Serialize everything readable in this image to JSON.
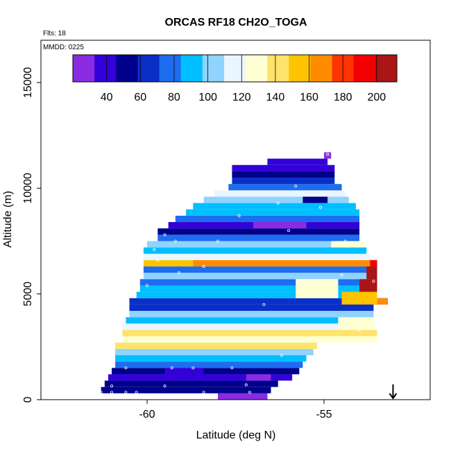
{
  "chart_data": {
    "type": "heatmap",
    "title": "ORCAS RF18 CH2O_TOGA",
    "annotations": {
      "flights": "Flts: 18",
      "date": "MMDD: 0225"
    },
    "xlabel": "Latitude (deg N)",
    "ylabel": "Altitude (m)",
    "xlim": [
      -63,
      -52
    ],
    "ylim": [
      0,
      17000
    ],
    "xticks": [
      -60,
      -55
    ],
    "yticks": [
      0,
      5000,
      10000,
      15000
    ],
    "colorbar": {
      "range": [
        20,
        212
      ],
      "ticks": [
        40,
        60,
        80,
        100,
        120,
        140,
        160,
        180,
        200
      ],
      "colors": [
        "#8a2be2",
        "#3300d9",
        "#00008b",
        "#0a2ec8",
        "#1e6cf0",
        "#00bfff",
        "#8fd3ff",
        "#eaf6ff",
        "#ffffd4",
        "#ffe36b",
        "#ffc400",
        "#ff8c00",
        "#ff3300",
        "#f00000",
        "#aa1515"
      ]
    },
    "arrow_marker": {
      "x": -53.05,
      "direction": "down"
    },
    "rows": [
      {
        "y0": 0,
        "y1": 300,
        "xmin": -58.0,
        "xmax": -56.6,
        "v": 32
      },
      {
        "y0": 300,
        "y1": 600,
        "xmin": -61.3,
        "xmax": -56.5,
        "v": 55
      },
      {
        "y0": 600,
        "y1": 900,
        "xmin": -61.2,
        "xmax": -56.3,
        "v": 48
      },
      {
        "y0": 900,
        "y1": 1200,
        "xmin": -61.1,
        "xmax": -55.9,
        "v": 40
      },
      {
        "y0": 1200,
        "y1": 1500,
        "xmin": -61.0,
        "xmax": -55.7,
        "v": 52
      },
      {
        "y0": 1500,
        "y1": 1800,
        "xmin": -60.9,
        "xmax": -55.6,
        "v": 72
      },
      {
        "y0": 1800,
        "y1": 2100,
        "xmin": -60.9,
        "xmax": -55.5,
        "v": 84
      },
      {
        "y0": 2100,
        "y1": 2400,
        "xmin": -60.9,
        "xmax": -55.3,
        "v": 108
      },
      {
        "y0": 2400,
        "y1": 2700,
        "xmin": -60.9,
        "xmax": -55.2,
        "v": 140
      },
      {
        "y0": 2700,
        "y1": 3000,
        "xmin": -60.7,
        "xmax": -53.5,
        "v": 130
      },
      {
        "y0": 3000,
        "y1": 3300,
        "xmin": -60.7,
        "xmax": -53.5,
        "v": 138
      },
      {
        "y0": 3300,
        "y1": 3600,
        "xmin": -60.7,
        "xmax": -53.6,
        "v": 112
      },
      {
        "y0": 3600,
        "y1": 3900,
        "xmin": -60.6,
        "xmax": -53.6,
        "v": 92
      },
      {
        "y0": 3900,
        "y1": 4200,
        "xmin": -60.5,
        "xmax": -53.6,
        "v": 106
      },
      {
        "y0": 4200,
        "y1": 4500,
        "xmin": -60.5,
        "xmax": -53.6,
        "v": 60
      },
      {
        "y0": 4500,
        "y1": 4800,
        "xmin": -60.5,
        "xmax": -53.2,
        "v": 70
      },
      {
        "y0": 4800,
        "y1": 5100,
        "xmin": -60.3,
        "xmax": -53.5,
        "v": 88
      },
      {
        "y0": 5100,
        "y1": 5400,
        "xmin": -60.2,
        "xmax": -53.5,
        "v": 94
      },
      {
        "y0": 5400,
        "y1": 5700,
        "xmin": -60.2,
        "xmax": -53.5,
        "v": 80
      },
      {
        "y0": 5700,
        "y1": 6000,
        "xmin": -60.1,
        "xmax": -53.5,
        "v": 100
      },
      {
        "y0": 6000,
        "y1": 6300,
        "xmin": -60.1,
        "xmax": -53.5,
        "v": 78
      },
      {
        "y0": 6300,
        "y1": 6600,
        "xmin": -60.1,
        "xmax": -53.6,
        "v": 152
      },
      {
        "y0": 6600,
        "y1": 6900,
        "xmin": -60.1,
        "xmax": -53.7,
        "v": 116
      },
      {
        "y0": 6900,
        "y1": 7200,
        "xmin": -60.1,
        "xmax": -53.8,
        "v": 92
      },
      {
        "y0": 7200,
        "y1": 7500,
        "xmin": -60.0,
        "xmax": -53.9,
        "v": 104
      },
      {
        "y0": 7500,
        "y1": 7800,
        "xmin": -59.7,
        "xmax": -54.0,
        "v": 72
      },
      {
        "y0": 7800,
        "y1": 8100,
        "xmin": -59.7,
        "xmax": -54.0,
        "v": 56
      },
      {
        "y0": 8100,
        "y1": 8400,
        "xmin": -59.4,
        "xmax": -54.0,
        "v": 42
      },
      {
        "y0": 8400,
        "y1": 8700,
        "xmin": -59.2,
        "xmax": -54.0,
        "v": 76
      },
      {
        "y0": 8700,
        "y1": 9000,
        "xmin": -58.9,
        "xmax": -54.0,
        "v": 96
      },
      {
        "y0": 9000,
        "y1": 9300,
        "xmin": -58.7,
        "xmax": -54.1,
        "v": 84
      },
      {
        "y0": 9300,
        "y1": 9600,
        "xmin": -58.4,
        "xmax": -54.3,
        "v": 100
      },
      {
        "y0": 9600,
        "y1": 9900,
        "xmin": -58.1,
        "xmax": -54.4,
        "v": 110
      },
      {
        "y0": 9900,
        "y1": 10200,
        "xmin": -57.7,
        "xmax": -54.5,
        "v": 74
      },
      {
        "y0": 10200,
        "y1": 10500,
        "xmin": -57.6,
        "xmax": -54.7,
        "v": 62
      },
      {
        "y0": 10500,
        "y1": 10800,
        "xmin": -57.6,
        "xmax": -54.7,
        "v": 50
      },
      {
        "y0": 10800,
        "y1": 11100,
        "xmin": -57.6,
        "xmax": -54.7,
        "v": 40
      },
      {
        "y0": 11100,
        "y1": 11400,
        "xmin": -56.6,
        "xmax": -54.9,
        "v": 36
      },
      {
        "y0": 11400,
        "y1": 11700,
        "xmin": -55.0,
        "xmax": -54.8,
        "v": 26
      }
    ],
    "overlays": [
      {
        "y0": 6300,
        "y1": 6600,
        "xmin": -58.7,
        "xmax": -53.7,
        "v": 166
      },
      {
        "y0": 6300,
        "y1": 6600,
        "xmin": -53.7,
        "xmax": -53.5,
        "v": 196
      },
      {
        "y0": 5700,
        "y1": 6300,
        "xmin": -53.8,
        "xmax": -53.5,
        "v": 204
      },
      {
        "y0": 5100,
        "y1": 5700,
        "xmin": -54.0,
        "xmax": -53.5,
        "v": 208
      },
      {
        "y0": 4500,
        "y1": 5100,
        "xmin": -54.5,
        "xmax": -53.5,
        "v": 152
      },
      {
        "y0": 4500,
        "y1": 4800,
        "xmin": -53.5,
        "xmax": -53.2,
        "v": 172
      },
      {
        "y0": 4800,
        "y1": 5700,
        "xmin": -55.8,
        "xmax": -54.6,
        "v": 128
      },
      {
        "y0": 3300,
        "y1": 3900,
        "xmin": -54.6,
        "xmax": -53.6,
        "v": 128
      },
      {
        "y0": 7200,
        "y1": 7500,
        "xmin": -54.8,
        "xmax": -53.9,
        "v": 128
      },
      {
        "y0": 1200,
        "y1": 1500,
        "xmin": -59.5,
        "xmax": -58.4,
        "v": 34
      },
      {
        "y0": 900,
        "y1": 1200,
        "xmin": -57.2,
        "xmax": -56.5,
        "v": 30
      },
      {
        "y0": 8100,
        "y1": 8400,
        "xmin": -57.0,
        "xmax": -55.5,
        "v": 30
      },
      {
        "y0": 9300,
        "y1": 9600,
        "xmin": -55.6,
        "xmax": -54.9,
        "v": 48
      }
    ],
    "points": [
      {
        "x": -61.3,
        "y": 350
      },
      {
        "x": -61.0,
        "y": 350
      },
      {
        "x": -60.6,
        "y": 350
      },
      {
        "x": -60.3,
        "y": 350
      },
      {
        "x": -61.0,
        "y": 650
      },
      {
        "x": -59.5,
        "y": 650
      },
      {
        "x": -57.2,
        "y": 700
      },
      {
        "x": -60.6,
        "y": 1500
      },
      {
        "x": -59.3,
        "y": 1500
      },
      {
        "x": -58.7,
        "y": 1500
      },
      {
        "x": -57.6,
        "y": 1500
      },
      {
        "x": -56.2,
        "y": 2100
      },
      {
        "x": -60.0,
        "y": 5400
      },
      {
        "x": -59.1,
        "y": 6000
      },
      {
        "x": -58.4,
        "y": 6300
      },
      {
        "x": -59.7,
        "y": 6600
      },
      {
        "x": -59.8,
        "y": 7100
      },
      {
        "x": -59.2,
        "y": 7500
      },
      {
        "x": -58.0,
        "y": 7500
      },
      {
        "x": -59.5,
        "y": 7800
      },
      {
        "x": -56.0,
        "y": 8000
      },
      {
        "x": -54.4,
        "y": 7500
      },
      {
        "x": -55.1,
        "y": 9100
      },
      {
        "x": -55.8,
        "y": 10100
      },
      {
        "x": -57.8,
        "y": 10800
      },
      {
        "x": -54.9,
        "y": 11600
      },
      {
        "x": -56.3,
        "y": 9300
      },
      {
        "x": -57.4,
        "y": 8700
      },
      {
        "x": -55.5,
        "y": 5600
      },
      {
        "x": -54.5,
        "y": 5900
      },
      {
        "x": -53.6,
        "y": 5600
      },
      {
        "x": -56.7,
        "y": 4500
      },
      {
        "x": -54.0,
        "y": 3300
      },
      {
        "x": -58.4,
        "y": 350
      },
      {
        "x": -57.1,
        "y": 350
      }
    ]
  }
}
